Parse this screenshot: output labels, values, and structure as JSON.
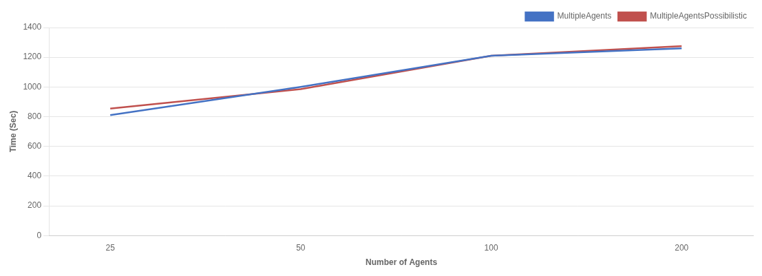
{
  "chart_data": {
    "type": "line",
    "x": [
      25,
      50,
      100,
      200
    ],
    "series": [
      {
        "name": "MultipleAgents",
        "color": "#4472C4",
        "values": [
          810,
          1000,
          1210,
          1260
        ]
      },
      {
        "name": "MultipleAgentsPossibilistic",
        "color": "#C0504D",
        "values": [
          855,
          985,
          1210,
          1275
        ]
      }
    ],
    "xlabel": "Number of Agents",
    "ylabel": "Time (Sec)",
    "xlim": [
      20,
      260
    ],
    "xticks": [
      25,
      50,
      100,
      200
    ],
    "ylim": [
      0,
      1400
    ],
    "yticks": [
      0,
      200,
      400,
      600,
      800,
      1000,
      1200,
      1400
    ],
    "log": "x",
    "grid": "y",
    "legend": "upper right"
  }
}
